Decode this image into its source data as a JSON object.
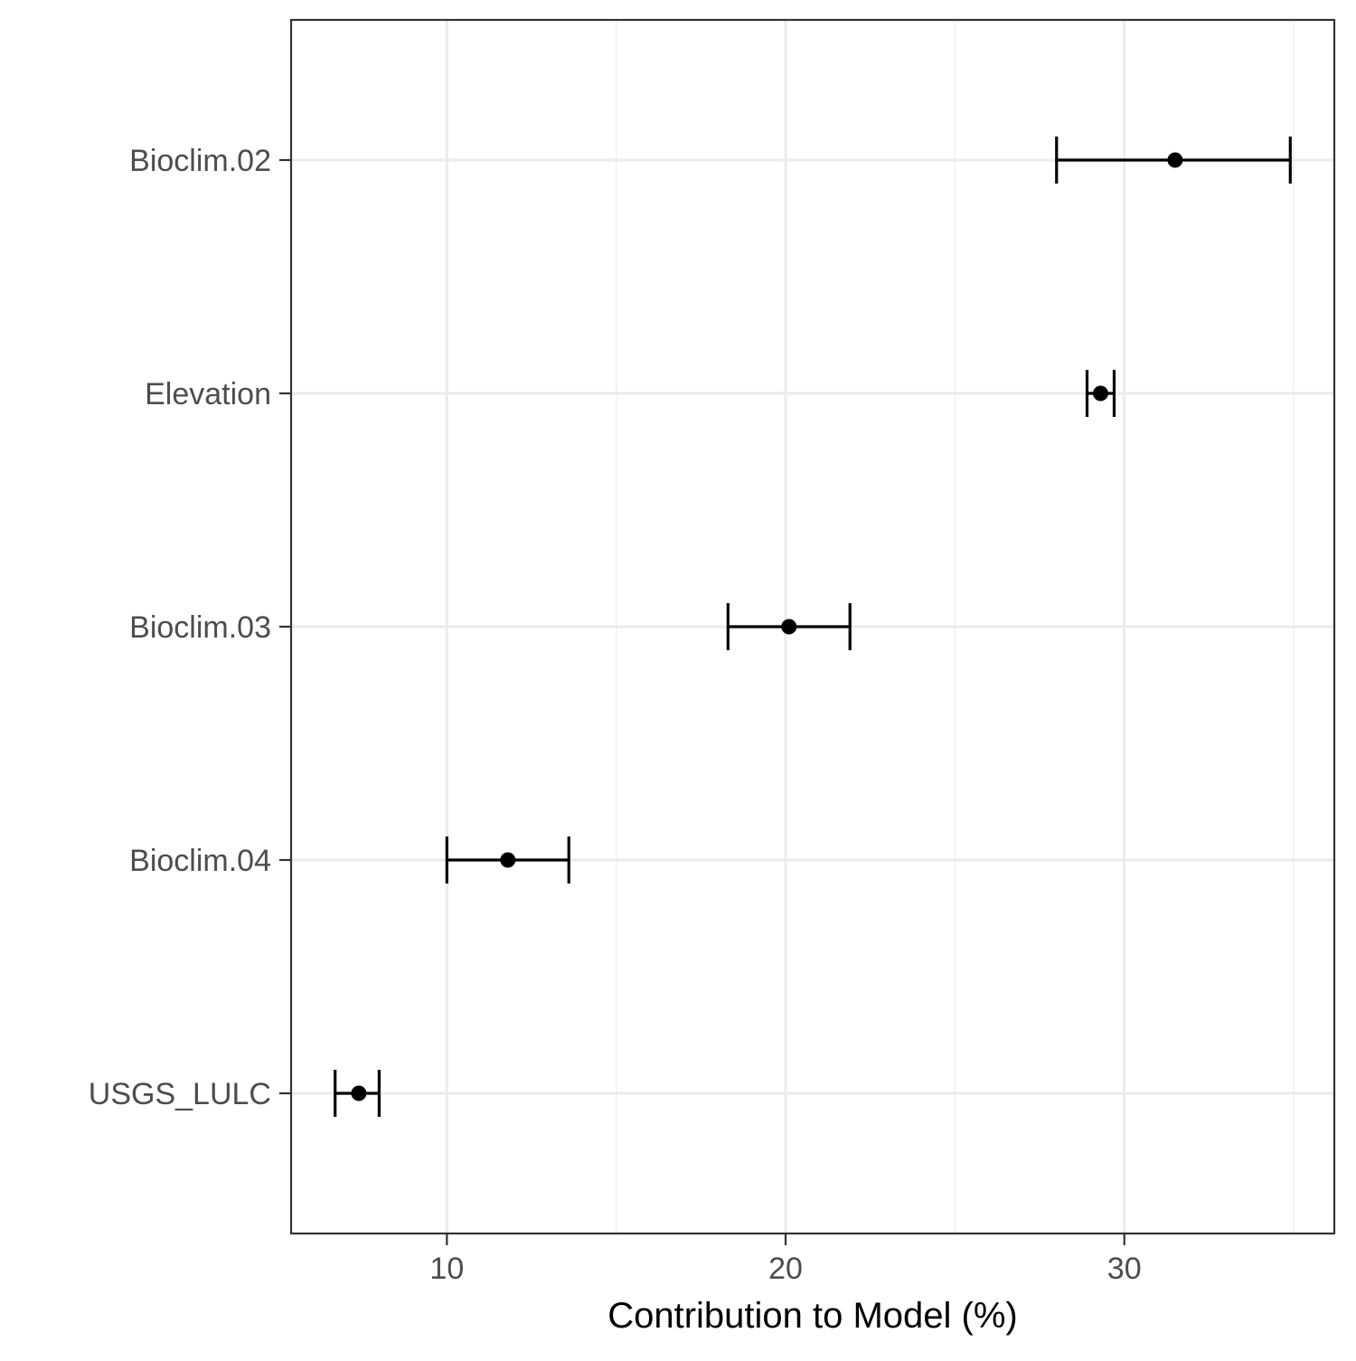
{
  "chart_data": {
    "type": "dot-errorbar",
    "orientation": "horizontal",
    "title": "",
    "xlabel": "Contribution to Model (%)",
    "ylabel": "",
    "xlim": [
      5.4,
      36.2
    ],
    "xticks": [
      10,
      20,
      30
    ],
    "x_minor_gridlines": [
      15,
      25,
      35
    ],
    "grid": true,
    "legend": "none",
    "theme": "bw",
    "categories": [
      "Bioclim.02",
      "Elevation",
      "Bioclim.03",
      "Bioclim.04",
      "USGS_LULC"
    ],
    "values": [
      31.5,
      29.3,
      20.1,
      11.8,
      7.4
    ],
    "lower": [
      28.0,
      28.9,
      18.3,
      10.0,
      6.7
    ],
    "upper": [
      34.9,
      29.7,
      21.9,
      13.6,
      8.0
    ],
    "colors": {
      "point": "#000000",
      "errorbar": "#000000",
      "grid_major": "#ebebeb",
      "grid_minor": "#f2f2f2",
      "panel_border": "#333333",
      "tick_text": "#4d4d4d",
      "axis_title_text": "#000000"
    }
  }
}
